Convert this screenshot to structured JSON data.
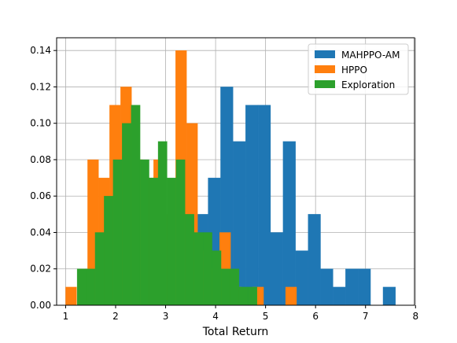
{
  "chart_data": {
    "type": "bar",
    "subtype": "histogram",
    "xlabel": "Total Return",
    "ylabel": "",
    "xlim": [
      0.82,
      7.98
    ],
    "ylim": [
      0,
      0.147
    ],
    "xticks": [
      1,
      2,
      3,
      4,
      5,
      6,
      7,
      8
    ],
    "yticks": [
      0.0,
      0.02,
      0.04,
      0.06,
      0.08,
      0.1,
      0.12,
      0.14
    ],
    "ytick_labels": [
      "0.00",
      "0.02",
      "0.04",
      "0.06",
      "0.08",
      "0.10",
      "0.12",
      "0.14"
    ],
    "grid": true,
    "legend_position": "top-right",
    "series": [
      {
        "name": "MAHPPO-AM",
        "color": "#1f77b4",
        "bins": [
          [
            3.6,
            3.85,
            0.05
          ],
          [
            3.85,
            4.1,
            0.07
          ],
          [
            4.1,
            4.35,
            0.12
          ],
          [
            4.35,
            4.6,
            0.09
          ],
          [
            4.6,
            4.85,
            0.11
          ],
          [
            4.85,
            5.1,
            0.11
          ],
          [
            5.1,
            5.35,
            0.04
          ],
          [
            5.35,
            5.6,
            0.09
          ],
          [
            5.6,
            5.85,
            0.03
          ],
          [
            5.85,
            6.1,
            0.05
          ],
          [
            6.1,
            6.35,
            0.02
          ],
          [
            6.35,
            6.6,
            0.01
          ],
          [
            6.6,
            6.85,
            0.02
          ],
          [
            6.85,
            7.1,
            0.02
          ],
          [
            7.35,
            7.6,
            0.01
          ]
        ]
      },
      {
        "name": "HPPO",
        "color": "#ff7f0e",
        "bins": [
          [
            1.0,
            1.22,
            0.01
          ],
          [
            1.22,
            1.44,
            0.0
          ],
          [
            1.44,
            1.66,
            0.08
          ],
          [
            1.66,
            1.88,
            0.07
          ],
          [
            1.88,
            2.1,
            0.11
          ],
          [
            2.1,
            2.32,
            0.12
          ],
          [
            2.32,
            2.54,
            0.08
          ],
          [
            2.54,
            2.76,
            0.07
          ],
          [
            2.76,
            2.98,
            0.08
          ],
          [
            2.98,
            3.2,
            0.05
          ],
          [
            3.2,
            3.42,
            0.14
          ],
          [
            3.42,
            3.64,
            0.1
          ],
          [
            3.64,
            3.86,
            0.03
          ],
          [
            3.86,
            4.08,
            0.02
          ],
          [
            4.08,
            4.3,
            0.04
          ],
          [
            4.3,
            4.52,
            0.01
          ],
          [
            4.52,
            4.74,
            0.0
          ],
          [
            4.74,
            4.96,
            0.01
          ],
          [
            4.96,
            5.18,
            0.0
          ],
          [
            5.18,
            5.4,
            0.0
          ],
          [
            5.4,
            5.62,
            0.01
          ]
        ]
      },
      {
        "name": "Exploration",
        "color": "#2ca02c",
        "bins": [
          [
            1.23,
            1.41,
            0.02
          ],
          [
            1.41,
            1.59,
            0.02
          ],
          [
            1.59,
            1.77,
            0.04
          ],
          [
            1.77,
            1.95,
            0.06
          ],
          [
            1.95,
            2.13,
            0.08
          ],
          [
            2.13,
            2.31,
            0.1
          ],
          [
            2.31,
            2.49,
            0.11
          ],
          [
            2.49,
            2.67,
            0.08
          ],
          [
            2.67,
            2.85,
            0.07
          ],
          [
            2.85,
            3.03,
            0.09
          ],
          [
            3.03,
            3.21,
            0.07
          ],
          [
            3.21,
            3.39,
            0.08
          ],
          [
            3.39,
            3.57,
            0.05
          ],
          [
            3.57,
            3.75,
            0.04
          ],
          [
            3.75,
            3.93,
            0.04
          ],
          [
            3.93,
            4.11,
            0.03
          ],
          [
            4.11,
            4.29,
            0.02
          ],
          [
            4.29,
            4.47,
            0.02
          ],
          [
            4.47,
            4.65,
            0.01
          ],
          [
            4.65,
            4.83,
            0.01
          ]
        ]
      }
    ]
  }
}
